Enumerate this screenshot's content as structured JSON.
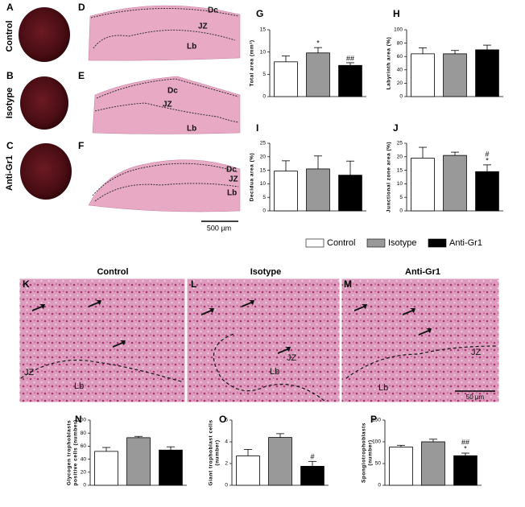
{
  "figure": {
    "panel_labels": [
      "A",
      "B",
      "C",
      "D",
      "E",
      "F",
      "G",
      "H",
      "I",
      "J",
      "K",
      "L",
      "M",
      "N",
      "O",
      "P"
    ],
    "row_labels": [
      "Control",
      "Isotype",
      "Anti-Gr1"
    ],
    "tissue_labels": [
      "Dc",
      "JZ",
      "Lb",
      "Dc",
      "JZ",
      "Lb",
      "Dc",
      "JZ",
      "Lb"
    ],
    "micro_titles": [
      "Control",
      "Isotype",
      "Anti-Gr1"
    ],
    "micro_labels": [
      "JZ",
      "Lb",
      "JZ",
      "Lb",
      "JZ",
      "Lb"
    ],
    "scale_bars": [
      "500 µm",
      "50 µm"
    ]
  },
  "legend": [
    {
      "name": "Control",
      "color": "#ffffff"
    },
    {
      "name": "Isotype",
      "color": "#999999"
    },
    {
      "name": "Anti-Gr1",
      "color": "#000000"
    }
  ],
  "chart_data": [
    {
      "type": "bar",
      "ylabel": [
        "Total area (mm²)"
      ],
      "ylim": [
        0,
        15
      ],
      "yticks": [
        0,
        5,
        10,
        15
      ],
      "values": [
        7.8,
        9.8,
        7.0
      ],
      "errors": [
        1.3,
        1.2,
        0.6
      ],
      "colors": [
        "#ffffff",
        "#999999",
        "#000000"
      ],
      "annotations": [
        [],
        [
          "*"
        ],
        [
          "##"
        ]
      ]
    },
    {
      "type": "bar",
      "ylabel": [
        "Labyrinth area (%)"
      ],
      "ylim": [
        0,
        100
      ],
      "yticks": [
        0,
        20,
        40,
        60,
        80,
        100
      ],
      "values": [
        64,
        64,
        70
      ],
      "errors": [
        9,
        5,
        7
      ],
      "colors": [
        "#ffffff",
        "#999999",
        "#000000"
      ],
      "annotations": [
        [],
        [],
        []
      ]
    },
    {
      "type": "bar",
      "ylabel": [
        "Decidua area (%)"
      ],
      "ylim": [
        0,
        25
      ],
      "yticks": [
        0,
        5,
        10,
        15,
        20,
        25
      ],
      "values": [
        14.7,
        15.5,
        13.2
      ],
      "errors": [
        3.8,
        4.8,
        5.2
      ],
      "colors": [
        "#ffffff",
        "#999999",
        "#000000"
      ],
      "annotations": [
        [],
        [],
        []
      ]
    },
    {
      "type": "bar",
      "ylabel": [
        "Junctional zone area (%)"
      ],
      "ylim": [
        0,
        25
      ],
      "yticks": [
        0,
        5,
        10,
        15,
        20,
        25
      ],
      "values": [
        19.5,
        20.5,
        14.5
      ],
      "errors": [
        4,
        1.2,
        2.5
      ],
      "colors": [
        "#ffffff",
        "#999999",
        "#000000"
      ],
      "annotations": [
        [],
        [],
        [
          "#",
          "*"
        ]
      ]
    },
    {
      "type": "bar",
      "ylabel": [
        "Glycogen trophoblasts",
        "positive cells (number)"
      ],
      "ylim": [
        0,
        100
      ],
      "yticks": [
        0,
        20,
        40,
        60,
        80,
        100
      ],
      "values": [
        52,
        73,
        54
      ],
      "errors": [
        6,
        2,
        5
      ],
      "colors": [
        "#ffffff",
        "#999999",
        "#000000"
      ],
      "annotations": [
        [],
        [],
        []
      ]
    },
    {
      "type": "bar",
      "ylabel": [
        "Giant trophoblast cells",
        "(number)"
      ],
      "ylim": [
        0,
        6
      ],
      "yticks": [
        0,
        2,
        4,
        6
      ],
      "values": [
        2.7,
        4.4,
        1.75
      ],
      "errors": [
        0.6,
        0.35,
        0.45
      ],
      "colors": [
        "#ffffff",
        "#999999",
        "#000000"
      ],
      "annotations": [
        [],
        [],
        [
          "#"
        ]
      ]
    },
    {
      "type": "bar",
      "ylabel": [
        "Spongiotrophoblasts",
        "(number)"
      ],
      "ylim": [
        0,
        150
      ],
      "yticks": [
        0,
        50,
        100,
        150
      ],
      "values": [
        88,
        100,
        68
      ],
      "errors": [
        4,
        6,
        6
      ],
      "colors": [
        "#ffffff",
        "#999999",
        "#000000"
      ],
      "annotations": [
        [],
        [],
        [
          "##",
          "*"
        ]
      ]
    }
  ]
}
